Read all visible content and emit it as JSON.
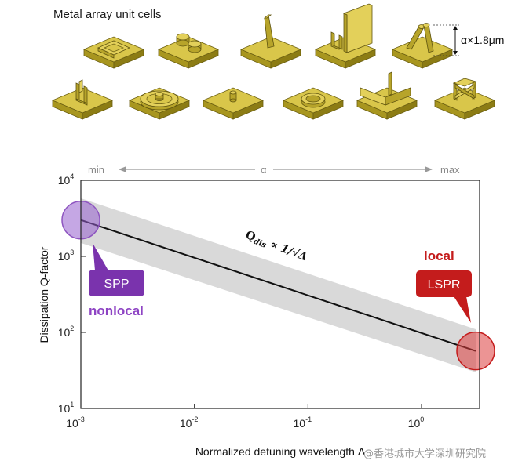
{
  "header": {
    "title": "Metal array unit cells"
  },
  "unit_cells": [
    "square-ring",
    "twin-disks",
    "tilted-blade",
    "u-wall",
    "tilted-pillars",
    "u-post",
    "concentric-rings",
    "single-pillar",
    "ring",
    "l-walls",
    "cross-frame"
  ],
  "height_annotation": "α×1.8μm",
  "alpha_scale": {
    "min_label": "min",
    "symbol": "α",
    "max_label": "max"
  },
  "chart_data": {
    "type": "line",
    "title": "",
    "xlabel": "Normalized detuning wavelength Δ",
    "ylabel": "Dissipation Q-factor",
    "xscale": "log",
    "yscale": "log",
    "xlim": [
      0.001,
      4
    ],
    "ylim": [
      10,
      10000
    ],
    "x_ticks": [
      {
        "value": 0.001,
        "base": "10",
        "exp": "-3"
      },
      {
        "value": 0.01,
        "base": "10",
        "exp": "-2"
      },
      {
        "value": 0.1,
        "base": "10",
        "exp": "-1"
      },
      {
        "value": 1,
        "base": "10",
        "exp": "0"
      }
    ],
    "y_ticks": [
      {
        "value": 10,
        "base": "10",
        "exp": "1"
      },
      {
        "value": 100,
        "base": "10",
        "exp": "2"
      },
      {
        "value": 1000,
        "base": "10",
        "exp": "3"
      },
      {
        "value": 10000,
        "base": "10",
        "exp": "4"
      }
    ],
    "series": [
      {
        "name": "Q_dis ∝ 1/√Δ",
        "x": [
          0.001,
          3
        ],
        "y": [
          3000,
          57
        ],
        "band_lower": [
          1500,
          30
        ],
        "band_upper": [
          5800,
          110
        ]
      }
    ],
    "formula": {
      "lead": "Q",
      "sub": "dis",
      "rest": " ∝ 1/√Δ"
    },
    "annotations": [
      {
        "label": "SPP",
        "tag": "nonlocal",
        "x": 0.001,
        "y": 3000,
        "color": "#8e55c0"
      },
      {
        "label": "LSPR",
        "tag": "local",
        "x": 3,
        "y": 57,
        "color": "#cc1f1f"
      }
    ]
  },
  "watermark": "@香港城市大学深圳研究院",
  "colors": {
    "purple": "#7a33ad",
    "red": "#c41c1c",
    "band": "#d9d9d9",
    "gold": "#d9c64a"
  }
}
